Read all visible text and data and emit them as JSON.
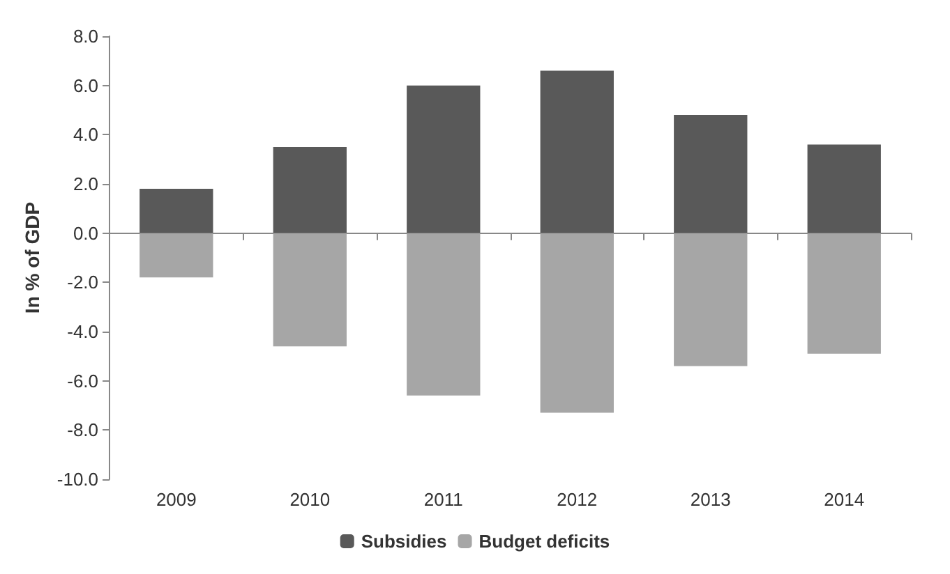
{
  "chart_data": {
    "type": "bar",
    "stacked": true,
    "ylabel": "In % of GDP",
    "categories": [
      "2009",
      "2010",
      "2011",
      "2012",
      "2013",
      "2014"
    ],
    "series": [
      {
        "name": "Subsidies",
        "color": "#595959",
        "values": [
          1.8,
          3.5,
          6.0,
          6.6,
          4.8,
          3.6
        ]
      },
      {
        "name": "Budget deficits",
        "color": "#a6a6a6",
        "values": [
          -1.8,
          -4.6,
          -6.6,
          -7.3,
          -5.4,
          -4.9
        ]
      }
    ],
    "ylim": [
      -10,
      8
    ],
    "yticks": [
      {
        "value": -10,
        "label": "-10.0"
      },
      {
        "value": -8,
        "label": "-8.0"
      },
      {
        "value": -6,
        "label": "-6.0"
      },
      {
        "value": -4,
        "label": "-4.0"
      },
      {
        "value": -2,
        "label": "-2.0"
      },
      {
        "value": 0,
        "label": "0.0"
      },
      {
        "value": 2,
        "label": "2.0"
      },
      {
        "value": 4,
        "label": "4.0"
      },
      {
        "value": 6,
        "label": "6.0"
      },
      {
        "value": 8,
        "label": "8.0"
      }
    ],
    "legend": "bottom"
  }
}
